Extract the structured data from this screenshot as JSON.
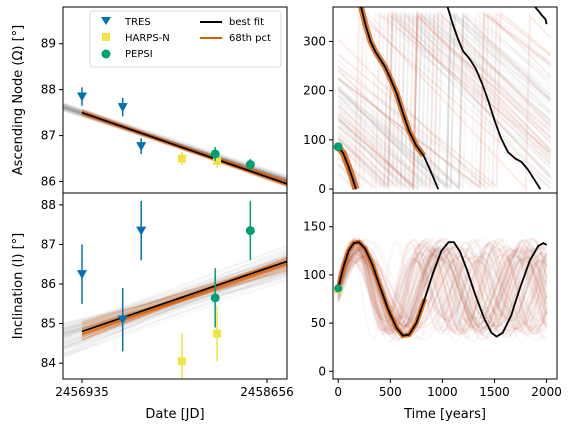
{
  "chart_data": [
    {
      "id": "node_left",
      "type": "scatter",
      "ylabel": "Ascending Node (Ω) [°]",
      "xlim": [
        0,
        1
      ],
      "ylim": [
        85.75,
        89.8
      ],
      "yticks": [
        86,
        87,
        88,
        89
      ],
      "legend": {
        "placement": "top-center",
        "entries": [
          {
            "label": "TRES",
            "marker": "triangle-down",
            "color": "#0072B2"
          },
          {
            "label": "HARPS-N",
            "marker": "square",
            "color": "#F0E442"
          },
          {
            "label": "PEPSI",
            "marker": "circle",
            "color": "#009E73"
          },
          {
            "label": "best fit",
            "marker": "line",
            "color": "#000000"
          },
          {
            "label": "68th pct",
            "marker": "line",
            "color": "#D55E00"
          }
        ]
      },
      "best_fit": [
        [
          0,
          87.5
        ],
        [
          1,
          86.1
        ]
      ],
      "series": [
        {
          "name": "TRES",
          "color": "#0072B2",
          "marker": "triangle-down",
          "points": [
            {
              "x": 0.0,
              "y": 87.85,
              "err": 0.2
            },
            {
              "x": 0.22,
              "y": 87.62,
              "err": 0.2
            },
            {
              "x": 0.32,
              "y": 86.77,
              "err": 0.17
            }
          ]
        },
        {
          "name": "HARPS-N",
          "color": "#F0E442",
          "marker": "square",
          "points": [
            {
              "x": 0.54,
              "y": 86.5,
              "err": 0.15
            },
            {
              "x": 0.73,
              "y": 86.45,
              "err": 0.15
            }
          ]
        },
        {
          "name": "PEPSI",
          "color": "#009E73",
          "marker": "circle",
          "points": [
            {
              "x": 0.72,
              "y": 86.6,
              "err": 0.15
            },
            {
              "x": 0.91,
              "y": 86.37,
              "err": 0.12
            }
          ]
        }
      ]
    },
    {
      "id": "node_right",
      "type": "line",
      "xlim": [
        -50,
        2100
      ],
      "ylim": [
        -8,
        370
      ],
      "yticks": [
        0,
        100,
        200,
        300
      ],
      "best_fit_segments": [
        [
          [
            0,
            86
          ],
          [
            50,
            72
          ],
          [
            100,
            45
          ],
          [
            140,
            20
          ],
          [
            170,
            0
          ]
        ],
        [
          [
            220,
            370
          ],
          [
            260,
            335
          ],
          [
            310,
            300
          ],
          [
            360,
            278
          ],
          [
            400,
            265
          ],
          [
            450,
            248
          ],
          [
            500,
            225
          ],
          [
            560,
            195
          ],
          [
            620,
            155
          ],
          [
            680,
            118
          ],
          [
            750,
            88
          ],
          [
            820,
            68
          ],
          [
            880,
            40
          ],
          [
            930,
            15
          ],
          [
            960,
            0
          ]
        ],
        [
          [
            1050,
            370
          ],
          [
            1100,
            335
          ],
          [
            1150,
            305
          ],
          [
            1200,
            280
          ],
          [
            1260,
            265
          ],
          [
            1320,
            245
          ],
          [
            1380,
            215
          ],
          [
            1440,
            180
          ],
          [
            1500,
            140
          ],
          [
            1560,
            105
          ],
          [
            1630,
            75
          ],
          [
            1700,
            62
          ],
          [
            1760,
            55
          ],
          [
            1820,
            40
          ],
          [
            1880,
            20
          ],
          [
            1940,
            0
          ]
        ],
        [
          [
            1890,
            370
          ],
          [
            1930,
            360
          ],
          [
            1960,
            352
          ],
          [
            1990,
            345
          ],
          [
            2000,
            335
          ]
        ]
      ]
    },
    {
      "id": "incl_left",
      "type": "scatter",
      "ylabel": "Inclination (I) [°]",
      "xlabel": "Date [JD]",
      "xticks": [
        "2456935",
        "2458656"
      ],
      "xlim": [
        0,
        1
      ],
      "ylim": [
        83.6,
        88.3
      ],
      "yticks": [
        84,
        85,
        86,
        87,
        88
      ],
      "best_fit": [
        [
          0,
          84.8
        ],
        [
          1,
          86.4
        ]
      ],
      "series": [
        {
          "name": "TRES",
          "color": "#0072B2",
          "marker": "triangle-down",
          "points": [
            {
              "x": 0.0,
              "y": 86.25,
              "err": 0.75
            },
            {
              "x": 0.22,
              "y": 85.1,
              "err": 0.8
            },
            {
              "x": 0.32,
              "y": 87.35,
              "err": 0.75
            }
          ]
        },
        {
          "name": "HARPS-N",
          "color": "#F0E442",
          "marker": "square",
          "points": [
            {
              "x": 0.54,
              "y": 84.05,
              "err": 0.7
            },
            {
              "x": 0.73,
              "y": 84.75,
              "err": 0.7
            }
          ]
        },
        {
          "name": "PEPSI",
          "color": "#009E73",
          "marker": "circle",
          "points": [
            {
              "x": 0.72,
              "y": 85.65,
              "err": 0.75
            },
            {
              "x": 0.91,
              "y": 87.35,
              "err": 0.75
            }
          ]
        }
      ]
    },
    {
      "id": "incl_right",
      "type": "line",
      "xlabel": "Time [years]",
      "xlim": [
        -50,
        2100
      ],
      "ylim": [
        -8,
        185
      ],
      "yticks": [
        0,
        50,
        100,
        150
      ],
      "xticks": [
        0,
        500,
        1000,
        1500,
        2000
      ],
      "best_fit": [
        [
          0,
          86
        ],
        [
          50,
          108
        ],
        [
          100,
          125
        ],
        [
          150,
          133
        ],
        [
          200,
          134
        ],
        [
          260,
          127
        ],
        [
          330,
          110
        ],
        [
          400,
          88
        ],
        [
          480,
          64
        ],
        [
          560,
          45
        ],
        [
          620,
          37
        ],
        [
          680,
          38
        ],
        [
          750,
          50
        ],
        [
          830,
          75
        ],
        [
          910,
          102
        ],
        [
          990,
          125
        ],
        [
          1060,
          134
        ],
        [
          1110,
          134
        ],
        [
          1170,
          124
        ],
        [
          1240,
          104
        ],
        [
          1320,
          78
        ],
        [
          1400,
          55
        ],
        [
          1470,
          40
        ],
        [
          1520,
          36
        ],
        [
          1580,
          40
        ],
        [
          1660,
          58
        ],
        [
          1750,
          88
        ],
        [
          1840,
          115
        ],
        [
          1920,
          130
        ],
        [
          1970,
          133
        ],
        [
          2000,
          131
        ]
      ],
      "start_markers": [
        {
          "color": "#F0E442",
          "marker": "square",
          "x": 0,
          "y": 85
        },
        {
          "color": "#009E73",
          "marker": "circle",
          "x": 0,
          "y": 86
        }
      ]
    }
  ]
}
